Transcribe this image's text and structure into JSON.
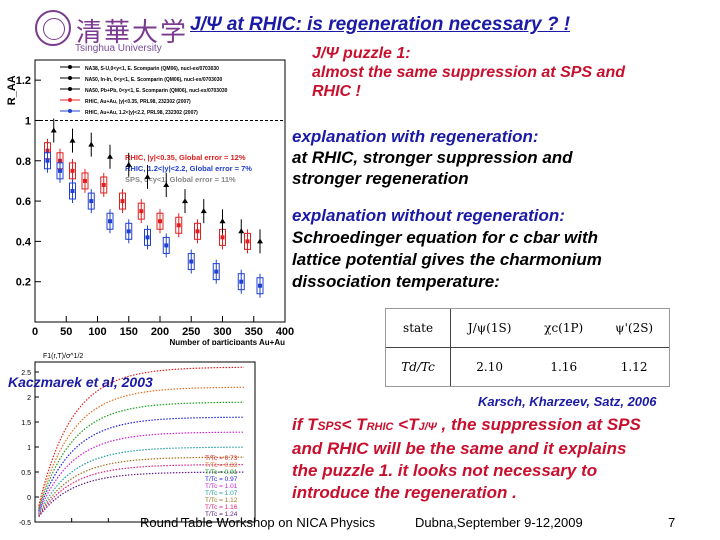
{
  "header": {
    "title": "J/Ψ at RHIC: is regeneration necessary ? !",
    "university_en": "Tsinghua University",
    "university_cn": "清華大学"
  },
  "puzzle": {
    "line1": "J/Ψ puzzle 1:",
    "line2": "almost the same suppression at SPS and",
    "line3": "RHIC !"
  },
  "with_regen": {
    "line1": "explanation with regeneration:",
    "line2": "at RHIC, stronger suppression and",
    "line3": "stronger regeneration"
  },
  "without_regen": {
    "line1": "explanation without regeneration:",
    "line2": "Schroedinger equation for c cbar with",
    "line3": "lattice potential gives the  charmonium",
    "line4": "dissociation temperature:"
  },
  "refs": {
    "kaczmarek": "Kaczmarek et al, 2003",
    "karsch": "Karsch, Kharzeev, Satz, 2006"
  },
  "conclusion": {
    "line1_a": "if T",
    "line1_sub1": "SPS",
    "line1_b": "< T",
    "line1_sub2": "RHIC",
    "line1_c": " <T",
    "line1_sub3": "J/Ψ",
    "line1_d": " , the suppression at SPS",
    "line2": "and RHIC will be the same and it explains",
    "line3": "the puzzle 1.  it looks not necessary to",
    "line4": "introduce the regeneration ."
  },
  "footer": {
    "event": "Round Table Workshop on NICA Physics",
    "place": "Dubna,September 9-12,2009",
    "page": "7"
  },
  "temp_table": {
    "headers": [
      "state",
      "J/ψ(1S)",
      "χc(1P)",
      "ψ'(2S)"
    ],
    "row_label": "Td/Tc",
    "values": [
      "2.10",
      "1.16",
      "1.12"
    ]
  },
  "chart_data": [
    {
      "type": "scatter",
      "title": "",
      "ylabel": "R_AA",
      "xlabel": "Number of participants Au+Au",
      "xlim": [
        0,
        400
      ],
      "ylim": [
        0,
        1.3
      ],
      "x_ticks": [
        "0",
        "50",
        "100",
        "150",
        "200",
        "250",
        "300",
        "350",
        "400"
      ],
      "y_ticks": [
        "0.2",
        "0.4",
        "0.6",
        "0.8",
        "1",
        "1.2"
      ],
      "legend_top": [
        "NA38, S-U,0<y<1, E. Scomparin (QM06), nucl-ex/0703030",
        "NA50, In-In, 0<y<1, E. Scomparin (QM06), nucl-ex/0703030",
        "NA50, Pb+Pb, 0<y<1, E. Scomparin (QM06), nucl-ex/0703030",
        "RHIC, Au+Au, |y|<0.35, PRL98, 232302 (2007)",
        "RHIC, Au+Au, 1.2<|y|<2.2, PRL98, 232302 (2007)"
      ],
      "legend_inner": [
        "RHIC, |y|<0.35, Global error = 12%",
        "RHIC, 1.2<|y|<2.2, Global error = 7%",
        "SPS, 0<y<1, Global error = 11%"
      ],
      "series": [
        {
          "name": "RHIC, |y|<0.35",
          "color": "#e02020",
          "x": [
            20,
            40,
            60,
            80,
            110,
            140,
            170,
            200,
            230,
            260,
            300,
            340
          ],
          "y": [
            0.85,
            0.8,
            0.75,
            0.7,
            0.68,
            0.6,
            0.55,
            0.5,
            0.48,
            0.45,
            0.42,
            0.4
          ]
        },
        {
          "name": "RHIC, 1.2<|y|<2.2",
          "color": "#2040d0",
          "x": [
            20,
            40,
            60,
            90,
            120,
            150,
            180,
            210,
            250,
            290,
            330,
            360
          ],
          "y": [
            0.8,
            0.75,
            0.65,
            0.6,
            0.5,
            0.45,
            0.42,
            0.38,
            0.3,
            0.25,
            0.2,
            0.18
          ]
        },
        {
          "name": "SPS",
          "color": "#000000",
          "x": [
            30,
            60,
            90,
            120,
            150,
            180,
            210,
            240,
            270,
            300,
            330,
            360
          ],
          "y": [
            0.95,
            0.9,
            0.88,
            0.82,
            0.78,
            0.72,
            0.68,
            0.6,
            0.55,
            0.5,
            0.45,
            0.4
          ]
        }
      ]
    },
    {
      "type": "line",
      "ylabel": "F1(r,T)/σ^1/2",
      "y_ticks": [
        "-0.5",
        "0",
        "0.5",
        "1",
        "1.5",
        "2",
        "2.5"
      ],
      "x_ticks": [
        "0",
        "0.5",
        "1",
        "1.5",
        "2",
        "2.5",
        "3"
      ],
      "xlim": [
        0,
        3
      ],
      "ylim": [
        -0.5,
        2.7
      ],
      "legend": [
        "T/Tc = 0.73",
        "T/Tc = 0.82",
        "T/Tc = 0.91",
        "T/Tc = 0.97",
        "T/Tc = 1.01",
        "T/Tc = 1.07",
        "T/Tc = 1.12",
        "T/Tc = 1.16",
        "T/Tc = 1.24"
      ],
      "colors": [
        "#e02020",
        "#e07020",
        "#20a020",
        "#2020e0",
        "#d020d0",
        "#20a0a0",
        "#a07020",
        "#e02080",
        "#602080"
      ],
      "plateaus": [
        2.6,
        2.2,
        1.9,
        1.6,
        1.3,
        1.0,
        0.8,
        0.65,
        0.5
      ]
    }
  ]
}
